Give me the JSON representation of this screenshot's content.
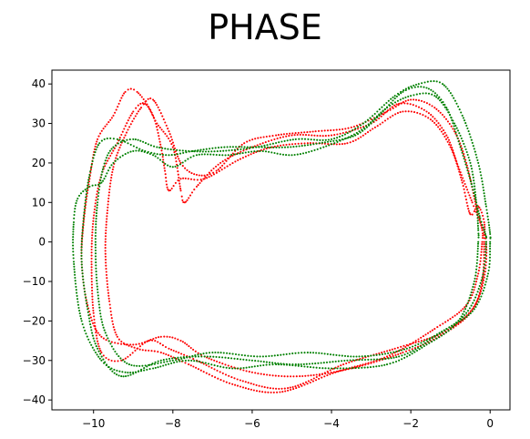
{
  "chart_data": {
    "type": "scatter",
    "title": "PHASE",
    "xlabel": "",
    "ylabel": "",
    "xlim": [
      -11.05,
      0.5
    ],
    "ylim": [
      -42.5,
      43.5
    ],
    "xticks": [
      -10,
      -8,
      -6,
      -4,
      -2,
      0
    ],
    "yticks": [
      -40,
      -30,
      -20,
      -10,
      0,
      10,
      20,
      30,
      40
    ],
    "xtick_labels": [
      "−10",
      "−8",
      "−6",
      "−4",
      "−2",
      "0"
    ],
    "ytick_labels": [
      "−40",
      "−30",
      "−20",
      "−10",
      "0",
      "10",
      "20",
      "30",
      "40"
    ],
    "grid": false,
    "legend": false,
    "series": [
      {
        "color": "#ff0000",
        "loops": [
          [
            [
              -0.15,
              0
            ],
            [
              -0.2,
              -10
            ],
            [
              -0.5,
              -18
            ],
            [
              -1.3,
              -24
            ],
            [
              -2.2,
              -28
            ],
            [
              -3.5,
              -32
            ],
            [
              -4.8,
              -34
            ],
            [
              -6,
              -33
            ],
            [
              -7.2,
              -29
            ],
            [
              -7.8,
              -25
            ],
            [
              -8.3,
              -24
            ],
            [
              -9,
              -26
            ],
            [
              -9.8,
              -24
            ],
            [
              -10.15,
              -16
            ],
            [
              -10.3,
              -5
            ],
            [
              -10.25,
              5
            ],
            [
              -10.1,
              16
            ],
            [
              -9.9,
              26
            ],
            [
              -9.5,
              32
            ],
            [
              -9.2,
              38
            ],
            [
              -8.9,
              38
            ],
            [
              -8.5,
              32
            ],
            [
              -8.3,
              24
            ],
            [
              -8.2,
              18
            ],
            [
              -8.1,
              13
            ],
            [
              -7.8,
              16
            ],
            [
              -7.2,
              16
            ],
            [
              -6.3,
              21
            ],
            [
              -5.5,
              24
            ],
            [
              -4.6,
              25
            ],
            [
              -3.6,
              25
            ],
            [
              -2.9,
              29
            ],
            [
              -2.2,
              33
            ],
            [
              -1.5,
              31
            ],
            [
              -1,
              24
            ],
            [
              -0.7,
              15
            ],
            [
              -0.5,
              7
            ],
            [
              -0.3,
              9
            ],
            [
              -0.15,
              5
            ]
          ],
          [
            [
              -0.1,
              0
            ],
            [
              -0.15,
              -9
            ],
            [
              -0.45,
              -17
            ],
            [
              -1.2,
              -23
            ],
            [
              -2.4,
              -27
            ],
            [
              -3.7,
              -31
            ],
            [
              -5.1,
              -37
            ],
            [
              -6.3,
              -35
            ],
            [
              -7.4,
              -30
            ],
            [
              -8.1,
              -27
            ],
            [
              -8.6,
              -25
            ],
            [
              -9.3,
              -30
            ],
            [
              -9.8,
              -28
            ],
            [
              -10.0,
              -18
            ],
            [
              -10.05,
              -5
            ],
            [
              -10.0,
              6
            ],
            [
              -9.8,
              17
            ],
            [
              -9.4,
              25
            ],
            [
              -9.0,
              33
            ],
            [
              -8.7,
              35
            ],
            [
              -8.4,
              30
            ],
            [
              -8.0,
              24
            ],
            [
              -7.8,
              13
            ],
            [
              -7.7,
              10
            ],
            [
              -7.4,
              14
            ],
            [
              -6.8,
              20
            ],
            [
              -6,
              24
            ],
            [
              -5,
              27
            ],
            [
              -4,
              27
            ],
            [
              -3,
              30
            ],
            [
              -2.3,
              35
            ],
            [
              -1.6,
              33
            ],
            [
              -1.1,
              27
            ],
            [
              -0.8,
              19
            ],
            [
              -0.45,
              10
            ],
            [
              -0.25,
              5
            ]
          ],
          [
            [
              -0.2,
              0
            ],
            [
              -0.3,
              -8
            ],
            [
              -0.6,
              -16
            ],
            [
              -1.4,
              -22
            ],
            [
              -2.6,
              -29
            ],
            [
              -3.9,
              -33
            ],
            [
              -5.3,
              -38
            ],
            [
              -6.5,
              -36
            ],
            [
              -7.6,
              -31
            ],
            [
              -8.3,
              -28
            ],
            [
              -8.9,
              -27
            ],
            [
              -9.4,
              -24
            ],
            [
              -9.6,
              -15
            ],
            [
              -9.7,
              -3
            ],
            [
              -9.65,
              8
            ],
            [
              -9.5,
              19
            ],
            [
              -9.2,
              27
            ],
            [
              -8.8,
              34
            ],
            [
              -8.5,
              36
            ],
            [
              -8.1,
              28
            ],
            [
              -7.8,
              20
            ],
            [
              -7.4,
              17
            ],
            [
              -6.9,
              18
            ],
            [
              -6.2,
              25
            ],
            [
              -5.4,
              27
            ],
            [
              -4.4,
              28
            ],
            [
              -3.5,
              29
            ],
            [
              -2.6,
              33
            ],
            [
              -2,
              36
            ],
            [
              -1.4,
              34
            ],
            [
              -0.9,
              28
            ],
            [
              -0.6,
              20
            ],
            [
              -0.35,
              9
            ],
            [
              -0.2,
              3
            ]
          ]
        ]
      },
      {
        "color": "#008000",
        "loops": [
          [
            [
              -0.3,
              0
            ],
            [
              -0.4,
              -10
            ],
            [
              -0.8,
              -20
            ],
            [
              -1.6,
              -26
            ],
            [
              -2.6,
              -31
            ],
            [
              -4,
              -32
            ],
            [
              -5.4,
              -31
            ],
            [
              -6.5,
              -32
            ],
            [
              -7.6,
              -30
            ],
            [
              -8.5,
              -32
            ],
            [
              -9.2,
              -33
            ],
            [
              -9.8,
              -30
            ],
            [
              -10.3,
              -20
            ],
            [
              -10.5,
              -5
            ],
            [
              -10.5,
              5
            ],
            [
              -10.4,
              11
            ],
            [
              -10.1,
              14
            ],
            [
              -9.8,
              15
            ],
            [
              -9.5,
              20
            ],
            [
              -9.0,
              23
            ],
            [
              -8.5,
              22
            ],
            [
              -8.0,
              19
            ],
            [
              -7.4,
              22
            ],
            [
              -6.6,
              22
            ],
            [
              -5.8,
              23
            ],
            [
              -5,
              22
            ],
            [
              -4.2,
              24
            ],
            [
              -3.3,
              28
            ],
            [
              -2.6,
              34
            ],
            [
              -2,
              37
            ],
            [
              -1.4,
              37
            ],
            [
              -0.9,
              30
            ],
            [
              -0.5,
              20
            ],
            [
              -0.35,
              10
            ],
            [
              -0.3,
              3
            ]
          ],
          [
            [
              -0.1,
              0
            ],
            [
              -0.2,
              -9
            ],
            [
              -0.6,
              -18
            ],
            [
              -1.4,
              -24
            ],
            [
              -2.3,
              -29
            ],
            [
              -3.6,
              -30
            ],
            [
              -4.9,
              -31
            ],
            [
              -6,
              -30
            ],
            [
              -7.2,
              -29
            ],
            [
              -8.3,
              -30
            ],
            [
              -9.3,
              -34
            ],
            [
              -9.9,
              -27
            ],
            [
              -10.15,
              -17
            ],
            [
              -10.3,
              -5
            ],
            [
              -10.25,
              6
            ],
            [
              -10.1,
              17
            ],
            [
              -9.85,
              25
            ],
            [
              -9.4,
              26
            ],
            [
              -8.7,
              23
            ],
            [
              -8.1,
              22
            ],
            [
              -7.5,
              23
            ],
            [
              -6.7,
              24
            ],
            [
              -5.9,
              24
            ],
            [
              -5.1,
              24
            ],
            [
              -4.3,
              25
            ],
            [
              -3.4,
              27
            ],
            [
              -2.8,
              32
            ],
            [
              -2.2,
              38
            ],
            [
              -1.6,
              39
            ],
            [
              -1.1,
              34
            ],
            [
              -0.75,
              24
            ],
            [
              -0.45,
              14
            ],
            [
              -0.25,
              6
            ],
            [
              -0.12,
              2
            ]
          ],
          [
            [
              0,
              0
            ],
            [
              -0.05,
              -8
            ],
            [
              -0.4,
              -17
            ],
            [
              -1.1,
              -22
            ],
            [
              -2.1,
              -27
            ],
            [
              -3.3,
              -29
            ],
            [
              -4.6,
              -28
            ],
            [
              -5.8,
              -29
            ],
            [
              -7,
              -28
            ],
            [
              -8,
              -30
            ],
            [
              -9.1,
              -31
            ],
            [
              -9.7,
              -23
            ],
            [
              -9.9,
              -12
            ],
            [
              -9.95,
              0
            ],
            [
              -9.9,
              10
            ],
            [
              -9.75,
              19
            ],
            [
              -9.5,
              24
            ],
            [
              -9,
              26
            ],
            [
              -8.4,
              24
            ],
            [
              -7.6,
              23
            ],
            [
              -6.8,
              23
            ],
            [
              -5.9,
              24
            ],
            [
              -4.9,
              26
            ],
            [
              -4,
              26
            ],
            [
              -3.2,
              30
            ],
            [
              -2.4,
              37
            ],
            [
              -1.8,
              40
            ],
            [
              -1.2,
              40
            ],
            [
              -0.7,
              32
            ],
            [
              -0.3,
              20
            ],
            [
              -0.1,
              9
            ],
            [
              0,
              2
            ]
          ]
        ]
      }
    ]
  }
}
